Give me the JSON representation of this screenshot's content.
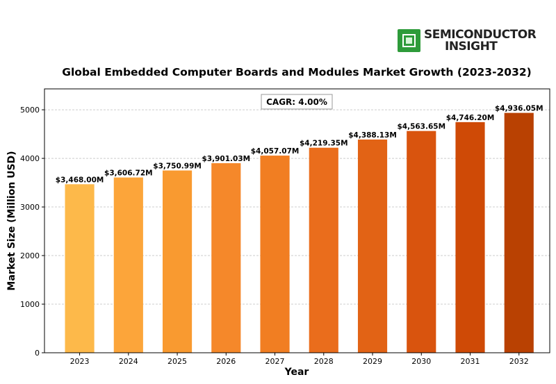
{
  "logo": {
    "line1": "SEMICONDUCTOR",
    "line2": "INSIGHT",
    "icon": "chip-icon"
  },
  "chart_data": {
    "type": "bar",
    "title": "Global Embedded Computer Boards and Modules Market Growth (2023-2032)",
    "xlabel": "Year",
    "ylabel": "Market Size (Million USD)",
    "annotation": "CAGR: 4.00%",
    "categories": [
      "2023",
      "2024",
      "2025",
      "2026",
      "2027",
      "2028",
      "2029",
      "2030",
      "2031",
      "2032"
    ],
    "values": [
      3468.0,
      3606.72,
      3750.99,
      3901.03,
      4057.07,
      4219.35,
      4388.13,
      4563.65,
      4746.2,
      4936.05
    ],
    "data_labels": [
      "$3,468.00M",
      "$3,606.72M",
      "$3,750.99M",
      "$3,901.03M",
      "$4,057.07M",
      "$4,219.35M",
      "$4,388.13M",
      "$4,563.65M",
      "$4,746.20M",
      "$4,936.05M"
    ],
    "yticks": [
      0,
      1000,
      2000,
      3000,
      4000,
      5000
    ],
    "ylim": [
      0,
      5430
    ],
    "grid": "horizontal",
    "colors": [
      "#fdb94a",
      "#fca53a",
      "#f99a30",
      "#f5882a",
      "#f17e22",
      "#ea6d1c",
      "#e26315",
      "#d9540e",
      "#cf4a06",
      "#b94102"
    ]
  }
}
